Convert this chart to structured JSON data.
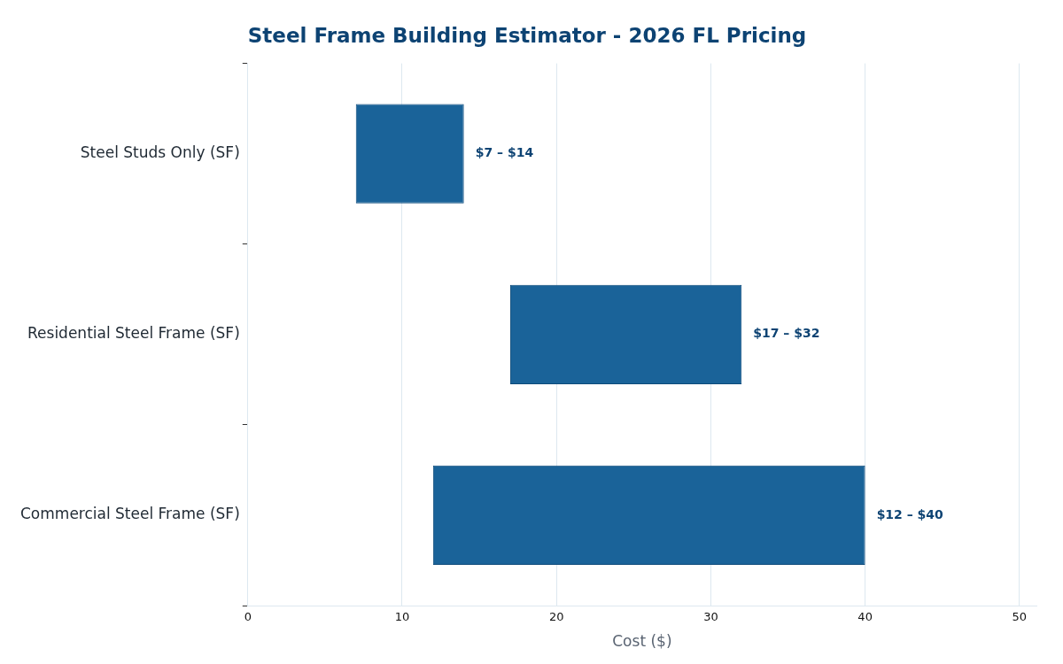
{
  "chart_data": {
    "type": "bar",
    "orientation": "horizontal",
    "title": "Steel Frame Building Estimator - 2026 FL Pricing",
    "xlabel": "Cost ($)",
    "categories": [
      "Steel Studs Only (SF)",
      "Residential Steel Frame (SF)",
      "Commercial Steel Frame (SF)"
    ],
    "base": [
      7,
      17,
      12
    ],
    "values": [
      7,
      15,
      28
    ],
    "annotations": [
      {
        "text": "$7 – $14",
        "x": 14,
        "y": "Steel Studs Only (SF)"
      },
      {
        "text": "$17 – $32",
        "x": 32,
        "y": "Residential Steel Frame (SF)"
      },
      {
        "text": "$12 – $40",
        "x": 40,
        "y": "Commercial Steel Frame (SF)"
      }
    ],
    "color": "#1a6399",
    "xlim": [
      0,
      51.1
    ],
    "xticks": [
      0,
      10,
      20,
      30,
      40,
      50
    ],
    "grid": "x",
    "legend": false
  }
}
